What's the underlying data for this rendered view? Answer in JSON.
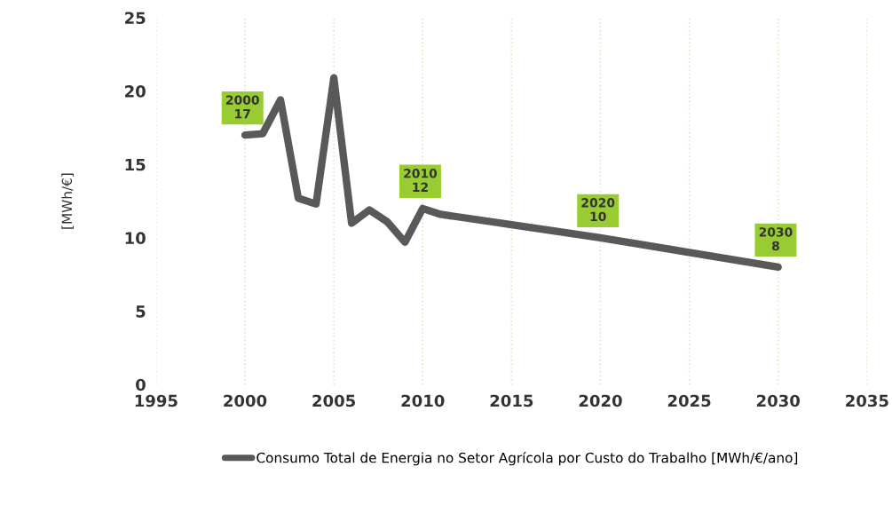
{
  "chart_data": {
    "type": "line",
    "ylabel": "[MWh/€]",
    "x": [
      2000,
      2001,
      2002,
      2003,
      2004,
      2005,
      2006,
      2007,
      2008,
      2009,
      2010,
      2011,
      2015,
      2020,
      2025,
      2030
    ],
    "series": [
      {
        "name": "Consumo Total de Energia no Setor Agrícola por Custo do Trabalho [MWh/€/ano]",
        "color": "#595959",
        "values": [
          17,
          17.1,
          19.4,
          12.7,
          12.3,
          20.9,
          11,
          11.9,
          11.1,
          9.7,
          12,
          11.6,
          10.9,
          10,
          9,
          8
        ]
      }
    ],
    "xlim": [
      1995,
      2035
    ],
    "xticks": [
      1995,
      2000,
      2005,
      2010,
      2015,
      2020,
      2025,
      2030,
      2035
    ],
    "ylim": [
      0,
      25
    ],
    "yticks": [
      0,
      5,
      10,
      15,
      20,
      25
    ],
    "grid": "x",
    "legend": "bottom",
    "marker": "none",
    "line_style": "solid",
    "annotations": [
      {
        "text": "2000\n17",
        "x": 2000,
        "y": 17
      },
      {
        "text": "2010\n12",
        "x": 2010,
        "y": 12
      },
      {
        "text": "2020\n10",
        "x": 2020,
        "y": 10
      },
      {
        "text": "2030\n8",
        "x": 2030,
        "y": 8
      }
    ]
  }
}
